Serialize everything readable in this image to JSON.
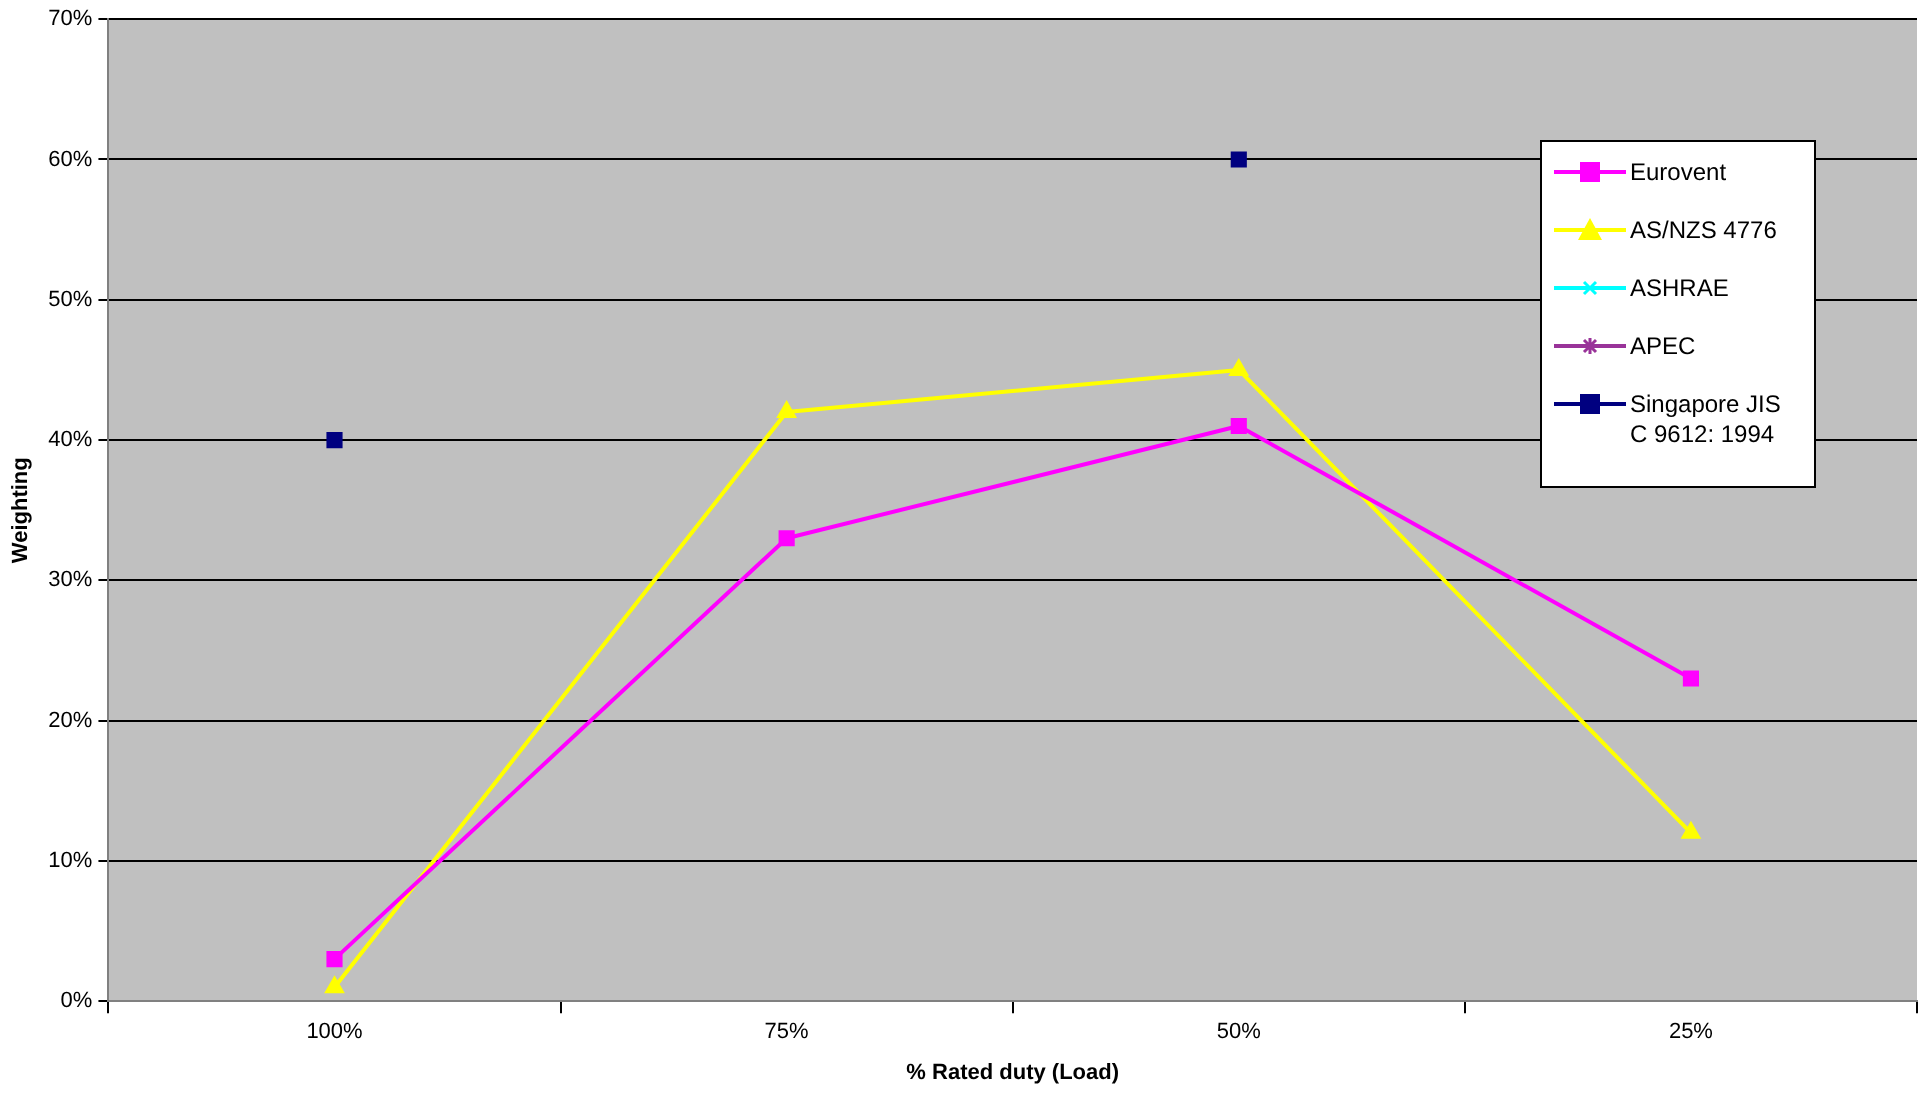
{
  "chart_data": {
    "type": "line",
    "xlabel": "% Rated duty (Load)",
    "ylabel": "Weighting",
    "categories": [
      "100%",
      "75%",
      "50%",
      "25%"
    ],
    "series": [
      {
        "name": "Eurovent",
        "color": "#ff00ff",
        "marker": "square",
        "values": [
          3,
          33,
          41,
          23
        ]
      },
      {
        "name": "AS/NZS 4776",
        "color": "#ffff00",
        "marker": "triangle",
        "values": [
          1,
          42,
          45,
          12
        ]
      },
      {
        "name": "ASHRAE",
        "color": "#00ffff",
        "marker": "cross",
        "values": [
          null,
          null,
          null,
          null
        ]
      },
      {
        "name": "APEC",
        "color": "#993399",
        "marker": "star",
        "values": [
          null,
          null,
          null,
          null
        ]
      },
      {
        "name": "Singapore JIS C 9612: 1994",
        "type": "scatter",
        "color": "#000080",
        "marker": "square",
        "values": [
          40,
          null,
          60,
          null
        ]
      }
    ],
    "ylim": [
      0,
      70
    ],
    "yticks": [
      {
        "value": 0,
        "label": "0%"
      },
      {
        "value": 10,
        "label": "10%"
      },
      {
        "value": 20,
        "label": "20%"
      },
      {
        "value": 30,
        "label": "30%"
      },
      {
        "value": 40,
        "label": "40%"
      },
      {
        "value": 50,
        "label": "50%"
      },
      {
        "value": 60,
        "label": "60%"
      },
      {
        "value": 70,
        "label": "70%"
      }
    ],
    "grid": "y",
    "legend": "top right"
  }
}
